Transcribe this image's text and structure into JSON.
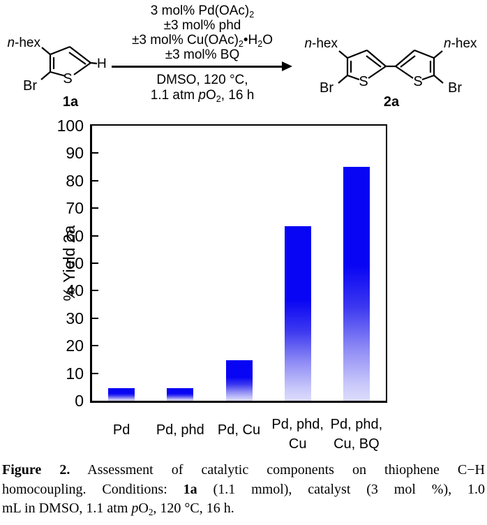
{
  "scheme": {
    "reactant": {
      "nhex": [
        {
          "t": "n",
          "s": "i"
        },
        {
          "t": "-hex"
        }
      ],
      "br": "Br",
      "s": "S",
      "h": "H",
      "label": "1a"
    },
    "product": {
      "nhex_left": [
        {
          "t": "n",
          "s": "i"
        },
        {
          "t": "-hex"
        }
      ],
      "nhex_right": [
        {
          "t": "n",
          "s": "i"
        },
        {
          "t": "-hex"
        }
      ],
      "br_left": "Br",
      "br_right": "Br",
      "s_left": "S",
      "s_right": "S",
      "label": "2a"
    },
    "conditions_above": [
      [
        {
          "t": "3 mol% Pd(OAc)"
        },
        {
          "t": "2",
          "s": "sub"
        }
      ],
      [
        {
          "t": "±3 mol% phd"
        }
      ],
      [
        {
          "t": "±3 mol% Cu(OAc)"
        },
        {
          "t": "2",
          "s": "sub"
        },
        {
          "t": "•H"
        },
        {
          "t": "2",
          "s": "sub"
        },
        {
          "t": "O"
        }
      ],
      [
        {
          "t": "±3 mol% BQ"
        }
      ]
    ],
    "conditions_below": [
      [
        {
          "t": "DMSO, 120 °C,"
        }
      ],
      [
        {
          "t": "1.1 atm "
        },
        {
          "t": "p",
          "s": "i"
        },
        {
          "t": "O"
        },
        {
          "t": "2",
          "s": "sub"
        },
        {
          "t": ", 16 h"
        }
      ]
    ]
  },
  "chart_data": {
    "type": "bar",
    "title": "",
    "categories": [
      "Pd",
      "Pd, phd",
      "Pd, Cu",
      "Pd, phd,\nCu",
      "Pd, phd,\nCu, BQ"
    ],
    "values": [
      4.5,
      4.5,
      14.8,
      63.5,
      85
    ],
    "xlabel": "",
    "ylabel": "% Yield 2a",
    "ylim": [
      0,
      100
    ],
    "ytick_step": 10,
    "yticks": [
      0,
      10,
      20,
      30,
      40,
      50,
      60,
      70,
      80,
      90,
      100
    ],
    "grid": false,
    "legend": "none",
    "bar_color_top": "#0804f4",
    "bar_color_bottom": "#dcdcfc",
    "bar_gradient_stops": [
      {
        "c": "#0804f4",
        "p": 0
      },
      {
        "c": "#0804f4",
        "p": 0.42
      },
      {
        "c": "#3c38f0",
        "p": 0.6
      },
      {
        "c": "#8f8cf5",
        "p": 0.78
      },
      {
        "c": "#c9c8fa",
        "p": 0.93
      },
      {
        "c": "#dcdcfc",
        "p": 1
      }
    ],
    "axis_color": "#000000"
  },
  "caption": {
    "lines": [
      [
        {
          "t": "Figure 2.",
          "s": "b"
        },
        {
          "t": " Assessment of catalytic components on thiophene C−H"
        }
      ],
      [
        {
          "t": "homocoupling. Conditions: "
        },
        {
          "t": "1a",
          "s": "b"
        },
        {
          "t": " (1.1 mmol), catalyst (3 mol %), 1.0"
        }
      ],
      [
        {
          "t": "mL in DMSO, 1.1 atm "
        },
        {
          "t": "p",
          "s": "i"
        },
        {
          "t": "O"
        },
        {
          "t": "2",
          "s": "sub"
        },
        {
          "t": ", 120 °C, 16 h."
        }
      ]
    ]
  }
}
